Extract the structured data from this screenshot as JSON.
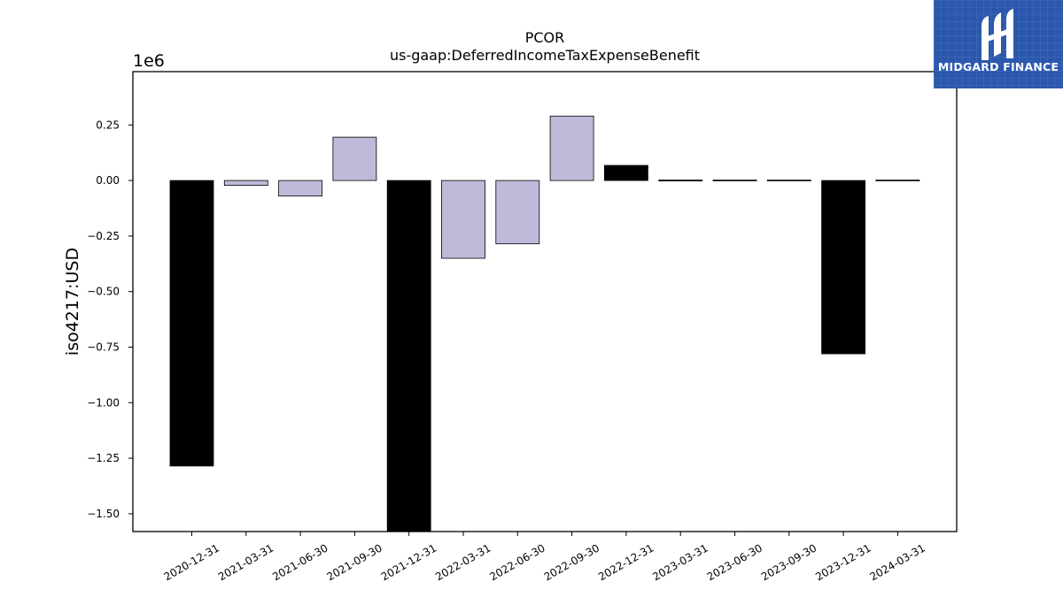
{
  "chart_data": {
    "type": "bar",
    "title": "PCOR",
    "subtitle": "us-gaap:DeferredIncomeTaxExpenseBenefit",
    "xlabel": "",
    "ylabel": "iso4217:USD",
    "offset_label": "1e6",
    "categories": [
      "2020-12-31",
      "2021-03-31",
      "2021-06-30",
      "2021-09-30",
      "2021-12-31",
      "2022-03-31",
      "2022-06-30",
      "2022-09-30",
      "2022-12-31",
      "2023-03-31",
      "2023-06-30",
      "2023-09-30",
      "2023-12-31",
      "2024-03-31"
    ],
    "values": [
      -1.285,
      -0.022,
      -0.07,
      0.195,
      -1.6,
      -0.35,
      -0.285,
      0.29,
      0.068,
      0.002,
      0.002,
      0.002,
      -0.78,
      0.002
    ],
    "period": [
      "FY",
      "Q",
      "Q",
      "Q",
      "FY",
      "Q",
      "Q",
      "Q",
      "FY",
      "FY",
      "Q",
      "Q",
      "FY",
      "Q"
    ],
    "colors": {
      "FY": "#000000",
      "Q": "#bdbbd9",
      "edge": "#000000"
    },
    "yticks": [
      0.25,
      0.0,
      -0.25,
      -0.5,
      -0.75,
      -1.0,
      -1.25,
      -1.5
    ],
    "ytick_labels": [
      "0.25",
      "0.00",
      "−0.25",
      "−0.50",
      "−0.75",
      "−1.00",
      "−1.25",
      "−1.50"
    ],
    "ylim": [
      -1.58,
      0.49
    ],
    "grid": false,
    "legend": "none"
  },
  "logo": {
    "text": "MIDGARD FINANCE",
    "icon": "midgard-logo-icon",
    "background": "#2b58ad"
  }
}
